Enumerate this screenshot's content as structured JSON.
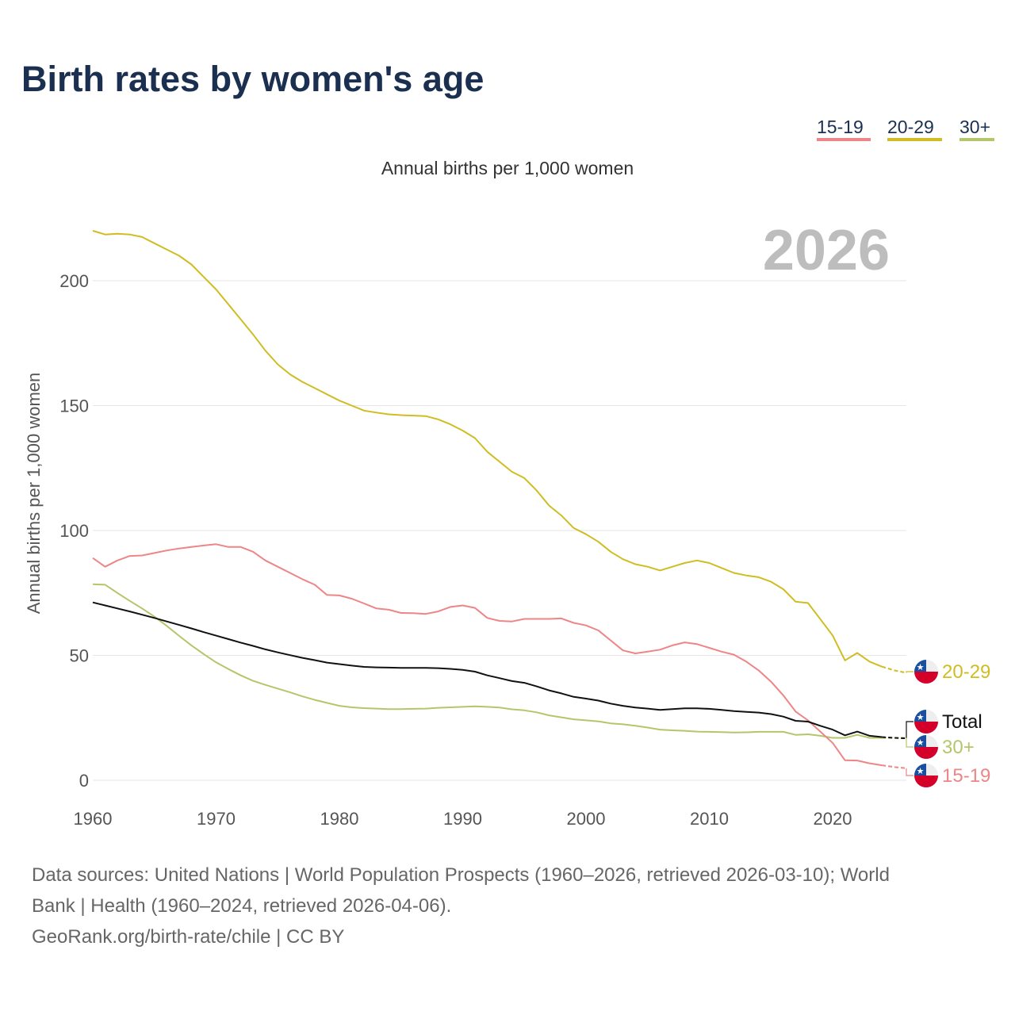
{
  "chart_data": {
    "type": "line",
    "title": "Birth rates by women's age",
    "subtitle": "Annual births per 1,000 women",
    "ylabel": "Annual births per 1,000 women",
    "xlabel": "",
    "year_display": "2026",
    "xlim": [
      1960,
      2026
    ],
    "ylim": [
      0,
      220
    ],
    "xticks": [
      1960,
      1970,
      1980,
      1990,
      2000,
      2010,
      2020
    ],
    "yticks": [
      0,
      50,
      100,
      150,
      200
    ],
    "grid": true,
    "legend_placement": "top-right",
    "projection_from": 2024,
    "x": [
      1960,
      1961,
      1962,
      1963,
      1964,
      1965,
      1966,
      1967,
      1968,
      1969,
      1970,
      1971,
      1972,
      1973,
      1974,
      1975,
      1976,
      1977,
      1978,
      1979,
      1980,
      1981,
      1982,
      1983,
      1984,
      1985,
      1986,
      1987,
      1988,
      1989,
      1990,
      1991,
      1992,
      1993,
      1994,
      1995,
      1996,
      1997,
      1998,
      1999,
      2000,
      2001,
      2002,
      2003,
      2004,
      2005,
      2006,
      2007,
      2008,
      2009,
      2010,
      2011,
      2012,
      2013,
      2014,
      2015,
      2016,
      2017,
      2018,
      2019,
      2020,
      2021,
      2022,
      2023,
      2024,
      2025,
      2026
    ],
    "series": [
      {
        "name": "15-19",
        "color": "#ee8586",
        "in_legend": true,
        "values": [
          89,
          85.5,
          88,
          89.8,
          90,
          91,
          92,
          92.8,
          93.4,
          94,
          94.5,
          93.4,
          93.4,
          91.5,
          88,
          85.5,
          83,
          80.5,
          78.3,
          74.2,
          74,
          72.7,
          70.8,
          68.8,
          68.3,
          67,
          66.9,
          66.6,
          67.6,
          69.4,
          70,
          69,
          65,
          63.8,
          63.6,
          64.6,
          64.6,
          64.6,
          64.8,
          63,
          62,
          60,
          56,
          52,
          50.8,
          51.5,
          52.3,
          54,
          55.2,
          54.5,
          53,
          51.5,
          50.3,
          47.5,
          44,
          39.5,
          34,
          27.5,
          24,
          19.5,
          15,
          8,
          7.9,
          6.8,
          6,
          5.3,
          4.8
        ]
      },
      {
        "name": "20-29",
        "color": "#cfbd22",
        "in_legend": true,
        "values": [
          220,
          218.5,
          218.8,
          218.5,
          217.5,
          215,
          212.5,
          210,
          206.5,
          201.5,
          196.5,
          190.5,
          184.5,
          178.5,
          172,
          166.5,
          162.5,
          159.5,
          157,
          154.5,
          152,
          150,
          148,
          147.2,
          146.5,
          146.2,
          146,
          145.8,
          144.5,
          142.5,
          140,
          137,
          131.5,
          127.5,
          123.5,
          121,
          116,
          110,
          106,
          101,
          98.5,
          95.5,
          91.5,
          88.5,
          86.5,
          85.5,
          84,
          85.5,
          87,
          88,
          87,
          85,
          83,
          82,
          81.3,
          79.5,
          76.5,
          71.5,
          71,
          64.5,
          58,
          48,
          51,
          47.5,
          45.5,
          44,
          43
        ]
      },
      {
        "name": "30+",
        "color": "#b3c76a",
        "in_legend": true,
        "values": [
          78.5,
          78.3,
          75,
          71.8,
          68.8,
          65.5,
          61.8,
          57.8,
          54,
          50.5,
          47.2,
          44.5,
          42,
          39.8,
          38.2,
          36.7,
          35.2,
          33.6,
          32.2,
          31,
          29.8,
          29.2,
          28.9,
          28.7,
          28.5,
          28.5,
          28.6,
          28.7,
          29,
          29.2,
          29.4,
          29.6,
          29.4,
          29.1,
          28.4,
          28,
          27.2,
          26,
          25.2,
          24.4,
          24,
          23.6,
          22.8,
          22.4,
          21.8,
          21.1,
          20.3,
          20,
          19.8,
          19.5,
          19.4,
          19.3,
          19.1,
          19.2,
          19.4,
          19.4,
          19.4,
          18.2,
          18.4,
          17.8,
          17,
          17,
          18.2,
          17,
          17,
          17,
          17
        ]
      },
      {
        "name": "Total",
        "color": "#111111",
        "in_legend": false,
        "values": [
          71.2,
          70,
          68.8,
          67.6,
          66.3,
          65,
          63.6,
          62.2,
          60.8,
          59.3,
          57.9,
          56.5,
          55.1,
          53.8,
          52.4,
          51.2,
          50.1,
          49,
          48.1,
          47.1,
          46.5,
          45.9,
          45.4,
          45.2,
          45.1,
          45,
          45,
          45,
          44.9,
          44.6,
          44.2,
          43.5,
          42,
          40.9,
          39.7,
          39,
          37.6,
          36,
          34.8,
          33.4,
          32.7,
          31.9,
          30.7,
          29.8,
          29.1,
          28.7,
          28.2,
          28.5,
          28.8,
          28.8,
          28.6,
          28.2,
          27.7,
          27.4,
          27.1,
          26.5,
          25.5,
          23.8,
          23.5,
          21.8,
          20.3,
          18,
          19.5,
          17.8,
          17.3,
          17,
          16.8
        ]
      }
    ]
  },
  "legend": [
    "15-19",
    "20-29",
    "30+"
  ],
  "end_labels": [
    "20-29",
    "Total",
    "30+",
    "15-19"
  ],
  "source": {
    "line1": "Data sources: United Nations | World Population Prospects (1960–2026, retrieved 2026-03-10); World",
    "line2": "Bank | Health (1960–2024, retrieved 2026-04-06).",
    "line3": "GeoRank.org/birth-rate/chile | CC BY"
  }
}
